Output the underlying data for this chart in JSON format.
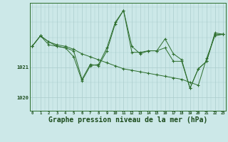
{
  "bg_color": "#cce8e8",
  "grid_color": "#aacccc",
  "line_color": "#2d6e2d",
  "marker_color": "#2d6e2d",
  "xlabel": "Graphe pression niveau de la mer (hPa)",
  "xlabel_fontsize": 7,
  "xticks": [
    0,
    1,
    2,
    3,
    4,
    5,
    6,
    7,
    8,
    9,
    10,
    11,
    12,
    13,
    14,
    15,
    16,
    17,
    18,
    19,
    20,
    21,
    22,
    23
  ],
  "ytick_labels": [
    "1020",
    "1021"
  ],
  "ytick_values": [
    1020,
    1021
  ],
  "ylim": [
    1019.55,
    1023.15
  ],
  "xlim": [
    -0.3,
    23.3
  ],
  "series": [
    [
      1021.7,
      1022.05,
      1021.85,
      1021.75,
      1021.7,
      1021.6,
      1021.45,
      1021.35,
      1021.25,
      1021.15,
      1021.05,
      1020.95,
      1020.9,
      1020.85,
      1020.8,
      1020.75,
      1020.7,
      1020.65,
      1020.6,
      1020.5,
      1020.4,
      1021.3,
      1022.05,
      1022.1
    ],
    [
      1021.7,
      1022.05,
      1021.85,
      1021.7,
      1021.65,
      1021.55,
      1020.6,
      1021.1,
      1021.05,
      1021.55,
      1022.45,
      1022.9,
      1021.5,
      1021.5,
      1021.55,
      1021.55,
      1021.65,
      1021.2,
      1021.2,
      1020.3,
      1020.95,
      1021.2,
      1022.1,
      1022.1
    ],
    [
      1021.7,
      1022.05,
      1021.75,
      1021.7,
      1021.65,
      1021.35,
      1020.55,
      1021.05,
      1021.1,
      1021.65,
      1022.5,
      1022.9,
      1021.7,
      1021.45,
      1021.55,
      1021.55,
      1021.95,
      1021.45,
      1021.25,
      1020.3,
      1020.95,
      1021.2,
      1022.15,
      1022.1
    ]
  ]
}
